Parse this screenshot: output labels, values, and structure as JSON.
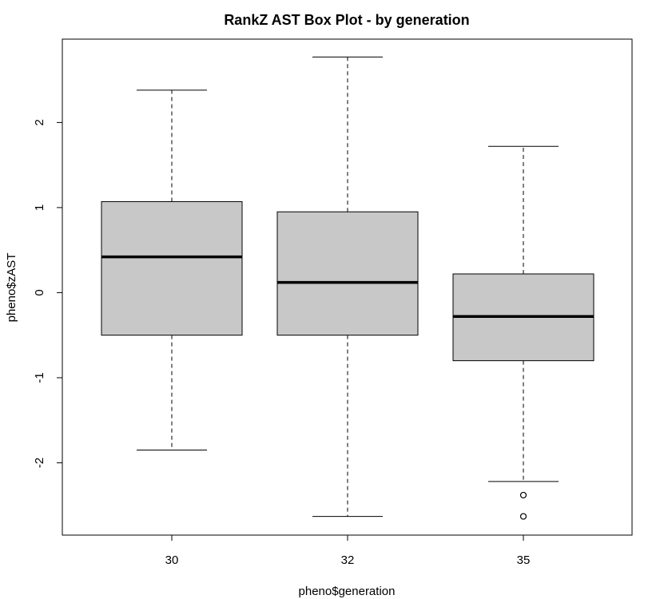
{
  "chart_data": {
    "type": "boxplot",
    "title": "RankZ AST Box Plot - by generation",
    "xlabel": "pheno$generation",
    "ylabel": "pheno$zAST",
    "categories": [
      "30",
      "32",
      "35"
    ],
    "yticks": [
      -2,
      -1,
      0,
      1,
      2
    ],
    "ytick_labels": [
      "-2",
      "-1",
      "0",
      "1",
      "2"
    ],
    "ylim": [
      -2.85,
      2.98
    ],
    "grid": false,
    "legend": "none",
    "box_fill": "#c8c8c8",
    "boxes": [
      {
        "category": "30",
        "whisker_low": -1.85,
        "q1": -0.5,
        "median": 0.42,
        "q3": 1.07,
        "whisker_high": 2.38,
        "outliers": []
      },
      {
        "category": "32",
        "whisker_low": -2.63,
        "q1": -0.5,
        "median": 0.12,
        "q3": 0.95,
        "whisker_high": 2.77,
        "outliers": []
      },
      {
        "category": "35",
        "whisker_low": -2.22,
        "q1": -0.8,
        "median": -0.28,
        "q3": 0.22,
        "whisker_high": 1.72,
        "outliers": [
          -2.38,
          -2.63
        ]
      }
    ]
  }
}
